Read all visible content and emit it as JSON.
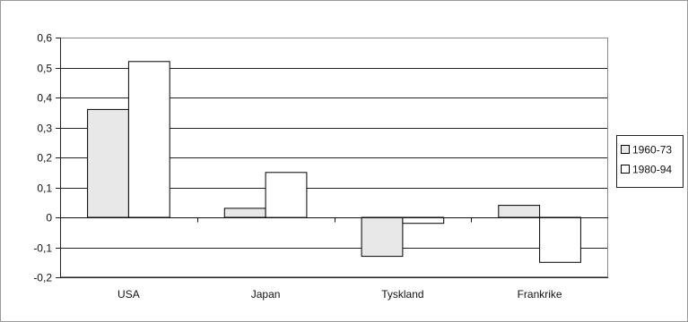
{
  "chart_data": {
    "type": "bar",
    "title": "",
    "xlabel": "",
    "ylabel": "",
    "categories": [
      "USA",
      "Japan",
      "Tyskland",
      "Frankrike"
    ],
    "series": [
      {
        "name": "1960-73",
        "values": [
          0.36,
          0.03,
          -0.13,
          0.04
        ],
        "color": "#e8e8e8"
      },
      {
        "name": "1980-94",
        "values": [
          0.52,
          0.15,
          -0.02,
          -0.15
        ],
        "color": "#ffffff"
      }
    ],
    "ylim": [
      -0.2,
      0.6
    ],
    "yticks": [
      -0.2,
      -0.1,
      0,
      0.1,
      0.2,
      0.3,
      0.4,
      0.5,
      0.6
    ],
    "ytick_labels": [
      "-0,2",
      "-0,1",
      "0",
      "0,1",
      "0,2",
      "0,3",
      "0,4",
      "0,5",
      "0,6"
    ],
    "grid": true,
    "legend_position": "right"
  }
}
